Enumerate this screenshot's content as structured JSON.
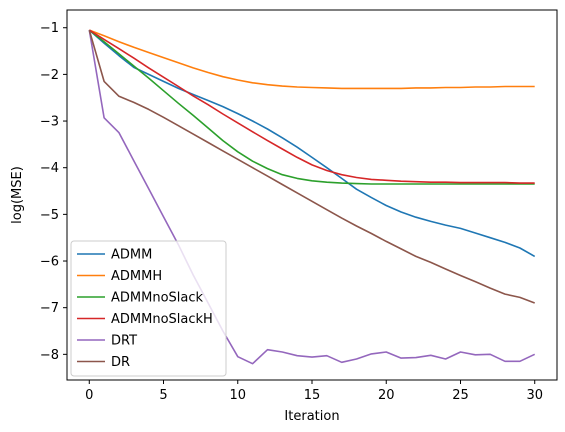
{
  "chart_data": {
    "type": "line",
    "title": "",
    "xlabel": "Iteration",
    "ylabel": "log(MSE)",
    "xlim": [
      -1.5,
      31.5
    ],
    "ylim": [
      -8.55,
      -0.62
    ],
    "x_ticks": [
      0,
      5,
      10,
      15,
      20,
      25,
      30
    ],
    "y_ticks": [
      -8,
      -7,
      -6,
      -5,
      -4,
      -3,
      -2,
      -1
    ],
    "x_tick_labels": [
      "0",
      "5",
      "10",
      "15",
      "20",
      "25",
      "30"
    ],
    "y_tick_labels": [
      "−8",
      "−7",
      "−6",
      "−5",
      "−4",
      "−3",
      "−2",
      "−1"
    ],
    "grid": false,
    "legend_position": "lower-left",
    "x": [
      0,
      1,
      2,
      3,
      4,
      5,
      6,
      7,
      8,
      9,
      10,
      11,
      12,
      13,
      14,
      15,
      16,
      17,
      18,
      19,
      20,
      21,
      22,
      23,
      24,
      25,
      26,
      27,
      28,
      29,
      30
    ],
    "series": [
      {
        "name": "ADMM",
        "color": "#1f77b4",
        "values": [
          -1.05,
          -1.33,
          -1.6,
          -1.85,
          -2.0,
          -2.15,
          -2.3,
          -2.43,
          -2.56,
          -2.69,
          -2.84,
          -3.0,
          -3.17,
          -3.36,
          -3.56,
          -3.78,
          -4.0,
          -4.23,
          -4.46,
          -4.64,
          -4.81,
          -4.95,
          -5.06,
          -5.15,
          -5.23,
          -5.3,
          -5.4,
          -5.5,
          -5.6,
          -5.72,
          -5.9
        ]
      },
      {
        "name": "ADMMH",
        "color": "#ff7f0e",
        "values": [
          -1.05,
          -1.17,
          -1.3,
          -1.42,
          -1.53,
          -1.64,
          -1.75,
          -1.86,
          -1.96,
          -2.05,
          -2.12,
          -2.18,
          -2.22,
          -2.25,
          -2.27,
          -2.28,
          -2.29,
          -2.3,
          -2.3,
          -2.3,
          -2.3,
          -2.3,
          -2.29,
          -2.29,
          -2.28,
          -2.28,
          -2.27,
          -2.27,
          -2.26,
          -2.26,
          -2.26
        ]
      },
      {
        "name": "ADMMnoSlack",
        "color": "#2ca02c",
        "values": [
          -1.05,
          -1.3,
          -1.56,
          -1.82,
          -2.08,
          -2.35,
          -2.62,
          -2.88,
          -3.15,
          -3.42,
          -3.66,
          -3.86,
          -4.02,
          -4.15,
          -4.23,
          -4.28,
          -4.31,
          -4.33,
          -4.34,
          -4.35,
          -4.35,
          -4.35,
          -4.35,
          -4.35,
          -4.35,
          -4.35,
          -4.35,
          -4.35,
          -4.35,
          -4.35,
          -4.35
        ]
      },
      {
        "name": "ADMMnoSlackH",
        "color": "#d62728",
        "values": [
          -1.05,
          -1.25,
          -1.45,
          -1.65,
          -1.86,
          -2.06,
          -2.26,
          -2.46,
          -2.65,
          -2.85,
          -3.04,
          -3.23,
          -3.42,
          -3.6,
          -3.78,
          -3.94,
          -4.06,
          -4.15,
          -4.21,
          -4.25,
          -4.27,
          -4.29,
          -4.3,
          -4.31,
          -4.31,
          -4.32,
          -4.32,
          -4.32,
          -4.32,
          -4.33,
          -4.33
        ]
      },
      {
        "name": "DRT",
        "color": "#9467bd",
        "values": [
          -1.05,
          -2.93,
          -3.25,
          -3.85,
          -4.45,
          -5.05,
          -5.65,
          -6.3,
          -6.9,
          -7.5,
          -8.05,
          -8.2,
          -7.9,
          -7.95,
          -8.03,
          -8.06,
          -8.03,
          -8.17,
          -8.1,
          -7.99,
          -7.95,
          -8.08,
          -8.07,
          -8.02,
          -8.1,
          -7.95,
          -8.01,
          -8.0,
          -8.15,
          -8.15,
          -8.0
        ]
      },
      {
        "name": "DR",
        "color": "#8c564b",
        "values": [
          -1.05,
          -2.15,
          -2.47,
          -2.6,
          -2.75,
          -2.92,
          -3.1,
          -3.28,
          -3.46,
          -3.64,
          -3.82,
          -4.0,
          -4.18,
          -4.36,
          -4.54,
          -4.72,
          -4.9,
          -5.08,
          -5.25,
          -5.41,
          -5.58,
          -5.74,
          -5.9,
          -6.03,
          -6.17,
          -6.31,
          -6.44,
          -6.58,
          -6.71,
          -6.78,
          -6.9
        ]
      }
    ]
  }
}
